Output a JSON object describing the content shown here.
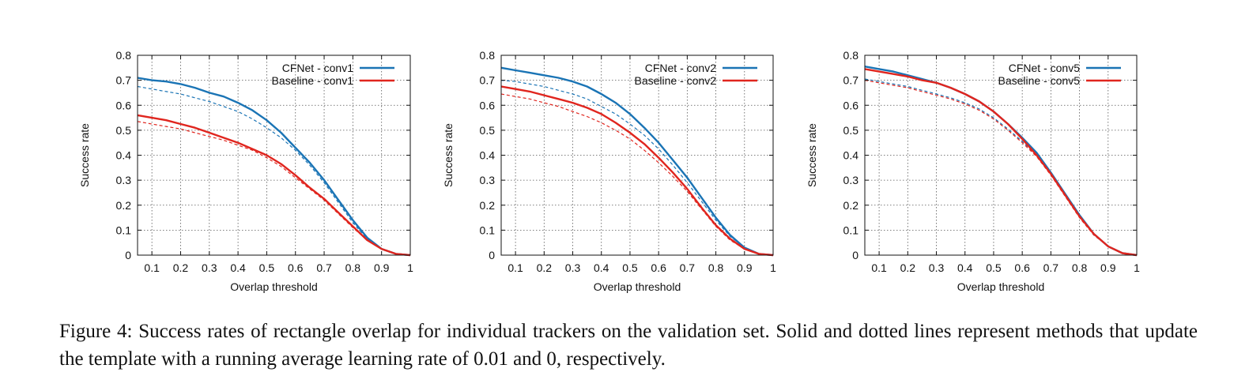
{
  "chart_data": [
    {
      "type": "line",
      "xlabel": "Overlap threshold",
      "ylabel": "Success rate",
      "xlim": [
        0.05,
        1.0
      ],
      "ylim": [
        0,
        0.8
      ],
      "xticks": [
        "0.1",
        "0.2",
        "0.3",
        "0.4",
        "0.5",
        "0.6",
        "0.7",
        "0.8",
        "0.9",
        "1"
      ],
      "yticks": [
        "0",
        "0.1",
        "0.2",
        "0.3",
        "0.4",
        "0.5",
        "0.6",
        "0.7",
        "0.8"
      ],
      "grid": true,
      "legend_position": "top-right",
      "series": [
        {
          "name": "CFNet - conv1",
          "color": "#1a74b5",
          "style": "solid",
          "x": [
            0.05,
            0.1,
            0.15,
            0.2,
            0.25,
            0.3,
            0.35,
            0.4,
            0.45,
            0.5,
            0.55,
            0.6,
            0.65,
            0.7,
            0.75,
            0.8,
            0.85,
            0.9,
            0.95,
            1.0
          ],
          "y": [
            0.71,
            0.7,
            0.695,
            0.685,
            0.67,
            0.65,
            0.635,
            0.61,
            0.58,
            0.54,
            0.49,
            0.43,
            0.37,
            0.3,
            0.22,
            0.14,
            0.07,
            0.025,
            0.005,
            0.0
          ]
        },
        {
          "name": "Baseline - conv1",
          "color": "#e0251e",
          "style": "solid",
          "x": [
            0.05,
            0.1,
            0.15,
            0.2,
            0.25,
            0.3,
            0.35,
            0.4,
            0.45,
            0.5,
            0.55,
            0.6,
            0.65,
            0.7,
            0.75,
            0.8,
            0.85,
            0.9,
            0.95,
            1.0
          ],
          "y": [
            0.56,
            0.55,
            0.54,
            0.525,
            0.51,
            0.49,
            0.47,
            0.45,
            0.425,
            0.4,
            0.365,
            0.32,
            0.27,
            0.225,
            0.17,
            0.115,
            0.06,
            0.025,
            0.005,
            0.0
          ]
        },
        {
          "name": "",
          "color": "#1a74b5",
          "style": "dashed",
          "x": [
            0.05,
            0.1,
            0.15,
            0.2,
            0.25,
            0.3,
            0.35,
            0.4,
            0.45,
            0.5,
            0.55,
            0.6,
            0.65,
            0.7,
            0.75,
            0.8,
            0.85,
            0.9,
            0.95,
            1.0
          ],
          "y": [
            0.675,
            0.665,
            0.655,
            0.645,
            0.63,
            0.615,
            0.595,
            0.575,
            0.545,
            0.51,
            0.47,
            0.42,
            0.36,
            0.29,
            0.21,
            0.13,
            0.065,
            0.025,
            0.005,
            0.0
          ]
        },
        {
          "name": "",
          "color": "#e0251e",
          "style": "dashed",
          "x": [
            0.05,
            0.1,
            0.15,
            0.2,
            0.25,
            0.3,
            0.35,
            0.4,
            0.45,
            0.5,
            0.55,
            0.6,
            0.65,
            0.7,
            0.75,
            0.8,
            0.85,
            0.9,
            0.95,
            1.0
          ],
          "y": [
            0.535,
            0.525,
            0.515,
            0.505,
            0.49,
            0.475,
            0.46,
            0.44,
            0.42,
            0.39,
            0.355,
            0.31,
            0.265,
            0.22,
            0.165,
            0.11,
            0.06,
            0.025,
            0.005,
            0.0
          ]
        }
      ]
    },
    {
      "type": "line",
      "xlabel": "Overlap threshold",
      "ylabel": "Success rate",
      "xlim": [
        0.05,
        1.0
      ],
      "ylim": [
        0,
        0.8
      ],
      "xticks": [
        "0.1",
        "0.2",
        "0.3",
        "0.4",
        "0.5",
        "0.6",
        "0.7",
        "0.8",
        "0.9",
        "1"
      ],
      "yticks": [
        "0",
        "0.1",
        "0.2",
        "0.3",
        "0.4",
        "0.5",
        "0.6",
        "0.7",
        "0.8"
      ],
      "grid": true,
      "legend_position": "top-right",
      "series": [
        {
          "name": "CFNet - conv2",
          "color": "#1a74b5",
          "style": "solid",
          "x": [
            0.05,
            0.1,
            0.15,
            0.2,
            0.25,
            0.3,
            0.35,
            0.4,
            0.45,
            0.5,
            0.55,
            0.6,
            0.65,
            0.7,
            0.75,
            0.8,
            0.85,
            0.9,
            0.95,
            1.0
          ],
          "y": [
            0.75,
            0.74,
            0.73,
            0.72,
            0.71,
            0.695,
            0.675,
            0.645,
            0.61,
            0.565,
            0.51,
            0.45,
            0.38,
            0.31,
            0.23,
            0.15,
            0.08,
            0.03,
            0.005,
            0.0
          ]
        },
        {
          "name": "Baseline - conv2",
          "color": "#e0251e",
          "style": "solid",
          "x": [
            0.05,
            0.1,
            0.15,
            0.2,
            0.25,
            0.3,
            0.35,
            0.4,
            0.45,
            0.5,
            0.55,
            0.6,
            0.65,
            0.7,
            0.75,
            0.8,
            0.85,
            0.9,
            0.95,
            1.0
          ],
          "y": [
            0.675,
            0.665,
            0.655,
            0.64,
            0.625,
            0.61,
            0.59,
            0.565,
            0.53,
            0.49,
            0.445,
            0.39,
            0.33,
            0.265,
            0.19,
            0.12,
            0.065,
            0.025,
            0.005,
            0.0
          ]
        },
        {
          "name": "",
          "color": "#1a74b5",
          "style": "dashed",
          "x": [
            0.05,
            0.1,
            0.15,
            0.2,
            0.25,
            0.3,
            0.35,
            0.4,
            0.45,
            0.5,
            0.55,
            0.6,
            0.65,
            0.7,
            0.75,
            0.8,
            0.85,
            0.9,
            0.95,
            1.0
          ],
          "y": [
            0.7,
            0.695,
            0.685,
            0.675,
            0.66,
            0.645,
            0.625,
            0.595,
            0.565,
            0.525,
            0.48,
            0.425,
            0.36,
            0.29,
            0.215,
            0.14,
            0.075,
            0.03,
            0.005,
            0.0
          ]
        },
        {
          "name": "",
          "color": "#e0251e",
          "style": "dashed",
          "x": [
            0.05,
            0.1,
            0.15,
            0.2,
            0.25,
            0.3,
            0.35,
            0.4,
            0.45,
            0.5,
            0.55,
            0.6,
            0.65,
            0.7,
            0.75,
            0.8,
            0.85,
            0.9,
            0.95,
            1.0
          ],
          "y": [
            0.645,
            0.635,
            0.625,
            0.61,
            0.595,
            0.575,
            0.555,
            0.53,
            0.5,
            0.465,
            0.42,
            0.37,
            0.315,
            0.255,
            0.185,
            0.115,
            0.06,
            0.025,
            0.005,
            0.0
          ]
        }
      ]
    },
    {
      "type": "line",
      "xlabel": "Overlap threshold",
      "ylabel": "Success rate",
      "xlim": [
        0.05,
        1.0
      ],
      "ylim": [
        0,
        0.8
      ],
      "xticks": [
        "0.1",
        "0.2",
        "0.3",
        "0.4",
        "0.5",
        "0.6",
        "0.7",
        "0.8",
        "0.9",
        "1"
      ],
      "yticks": [
        "0",
        "0.1",
        "0.2",
        "0.3",
        "0.4",
        "0.5",
        "0.6",
        "0.7",
        "0.8"
      ],
      "grid": true,
      "legend_position": "top-right",
      "series": [
        {
          "name": "CFNet - conv5",
          "color": "#1a74b5",
          "style": "solid",
          "x": [
            0.05,
            0.1,
            0.15,
            0.2,
            0.25,
            0.3,
            0.35,
            0.4,
            0.45,
            0.5,
            0.55,
            0.6,
            0.65,
            0.7,
            0.75,
            0.8,
            0.85,
            0.9,
            0.95,
            1.0
          ],
          "y": [
            0.755,
            0.745,
            0.735,
            0.72,
            0.705,
            0.69,
            0.67,
            0.645,
            0.615,
            0.575,
            0.525,
            0.47,
            0.41,
            0.33,
            0.245,
            0.16,
            0.085,
            0.035,
            0.008,
            0.0
          ]
        },
        {
          "name": "Baseline - conv5",
          "color": "#e0251e",
          "style": "solid",
          "x": [
            0.05,
            0.1,
            0.15,
            0.2,
            0.25,
            0.3,
            0.35,
            0.4,
            0.45,
            0.5,
            0.55,
            0.6,
            0.65,
            0.7,
            0.75,
            0.8,
            0.85,
            0.9,
            0.95,
            1.0
          ],
          "y": [
            0.745,
            0.735,
            0.725,
            0.715,
            0.7,
            0.69,
            0.67,
            0.645,
            0.615,
            0.575,
            0.525,
            0.465,
            0.4,
            0.325,
            0.24,
            0.155,
            0.085,
            0.035,
            0.008,
            0.0
          ]
        },
        {
          "name": "",
          "color": "#1a74b5",
          "style": "dashed",
          "x": [
            0.05,
            0.1,
            0.15,
            0.2,
            0.25,
            0.3,
            0.35,
            0.4,
            0.45,
            0.5,
            0.55,
            0.6,
            0.65,
            0.7,
            0.75,
            0.8,
            0.85,
            0.9,
            0.95,
            1.0
          ],
          "y": [
            0.705,
            0.695,
            0.685,
            0.675,
            0.66,
            0.645,
            0.63,
            0.61,
            0.585,
            0.55,
            0.505,
            0.455,
            0.4,
            0.325,
            0.24,
            0.155,
            0.085,
            0.035,
            0.008,
            0.0
          ]
        },
        {
          "name": "",
          "color": "#e0251e",
          "style": "dashed",
          "x": [
            0.05,
            0.1,
            0.15,
            0.2,
            0.25,
            0.3,
            0.35,
            0.4,
            0.45,
            0.5,
            0.55,
            0.6,
            0.65,
            0.7,
            0.75,
            0.8,
            0.85,
            0.9,
            0.95,
            1.0
          ],
          "y": [
            0.7,
            0.69,
            0.68,
            0.67,
            0.655,
            0.64,
            0.625,
            0.605,
            0.58,
            0.545,
            0.5,
            0.45,
            0.395,
            0.32,
            0.235,
            0.15,
            0.08,
            0.035,
            0.008,
            0.0
          ]
        }
      ]
    }
  ],
  "caption": "Figure 4: Success rates of rectangle overlap for individual trackers on the validation set. Solid and dotted lines represent methods that update the template with a running average learning rate of 0.01 and 0, respectively."
}
